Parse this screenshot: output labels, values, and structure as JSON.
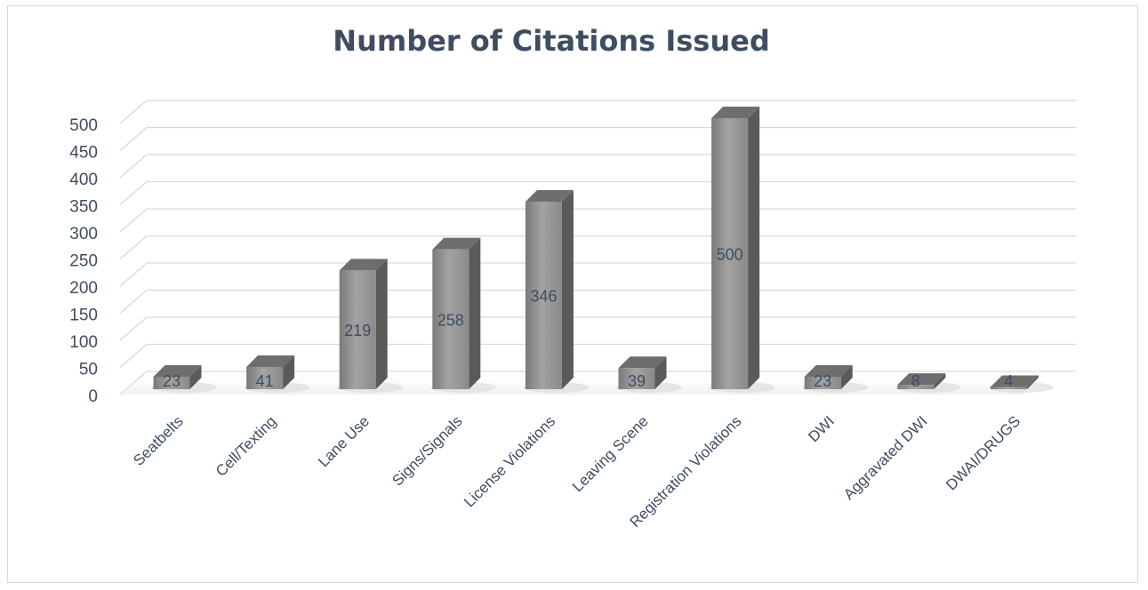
{
  "chart_data": {
    "type": "bar",
    "title": "Number of Citations Issued",
    "categories": [
      "Seatbelts",
      "Cell/Texting",
      "Lane Use",
      "Signs/Signals",
      "License Violations",
      "Leaving Scene",
      "Registration Violations",
      "DWI",
      "Aggravated DWI",
      "DWAI/DRUGS"
    ],
    "values": [
      23,
      41,
      219,
      258,
      346,
      39,
      500,
      23,
      8,
      4
    ],
    "yticks": [
      "0",
      "50",
      "100",
      "150",
      "200",
      "250",
      "300",
      "350",
      "400",
      "450",
      "500"
    ],
    "ylim": [
      0,
      500
    ],
    "grid": true,
    "style": "3d-column",
    "colors": {
      "bar_front": "#8c8c8c",
      "bar_side": "#5a5a5a",
      "bar_top": "#6e6e6e",
      "grid": "#d9d9d9",
      "text": "#3e4d61"
    }
  }
}
